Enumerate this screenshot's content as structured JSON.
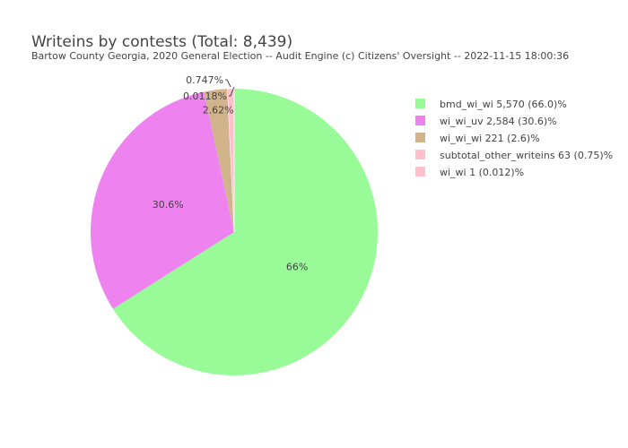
{
  "chart_data": {
    "type": "pie",
    "title": "Writeins by contests (Total: 8,439)",
    "subtitle": "Bartow County Georgia, 2020 General Election -- Audit Engine (c) Citizens' Oversight -- 2022-11-15 18:00:36",
    "legend_placement": "top-right",
    "slices": [
      {
        "name": "bmd_wi_wi",
        "value": 5570,
        "color": "#98fb98",
        "label": "66%",
        "legend": "bmd_wi_wi 5,570 (66.0)%"
      },
      {
        "name": "wi_wi_uv",
        "value": 2584,
        "color": "#ee82ee",
        "label": "30.6%",
        "legend": "wi_wi_uv 2,584 (30.6)%"
      },
      {
        "name": "wi_wi_wi",
        "value": 221,
        "color": "#d2b48c",
        "label": "2.62%",
        "legend": "wi_wi_wi 221 (2.6)%"
      },
      {
        "name": "subtotal_other_writeins",
        "value": 63,
        "color": "#ffc0cb",
        "label": "0.747%",
        "legend": "subtotal_other_writeins 63 (0.75)%"
      },
      {
        "name": "wi_wi",
        "value": 1,
        "color": "#ffc0cb",
        "label": "0.0118%",
        "legend": "wi_wi 1 (0.012)%"
      }
    ]
  }
}
